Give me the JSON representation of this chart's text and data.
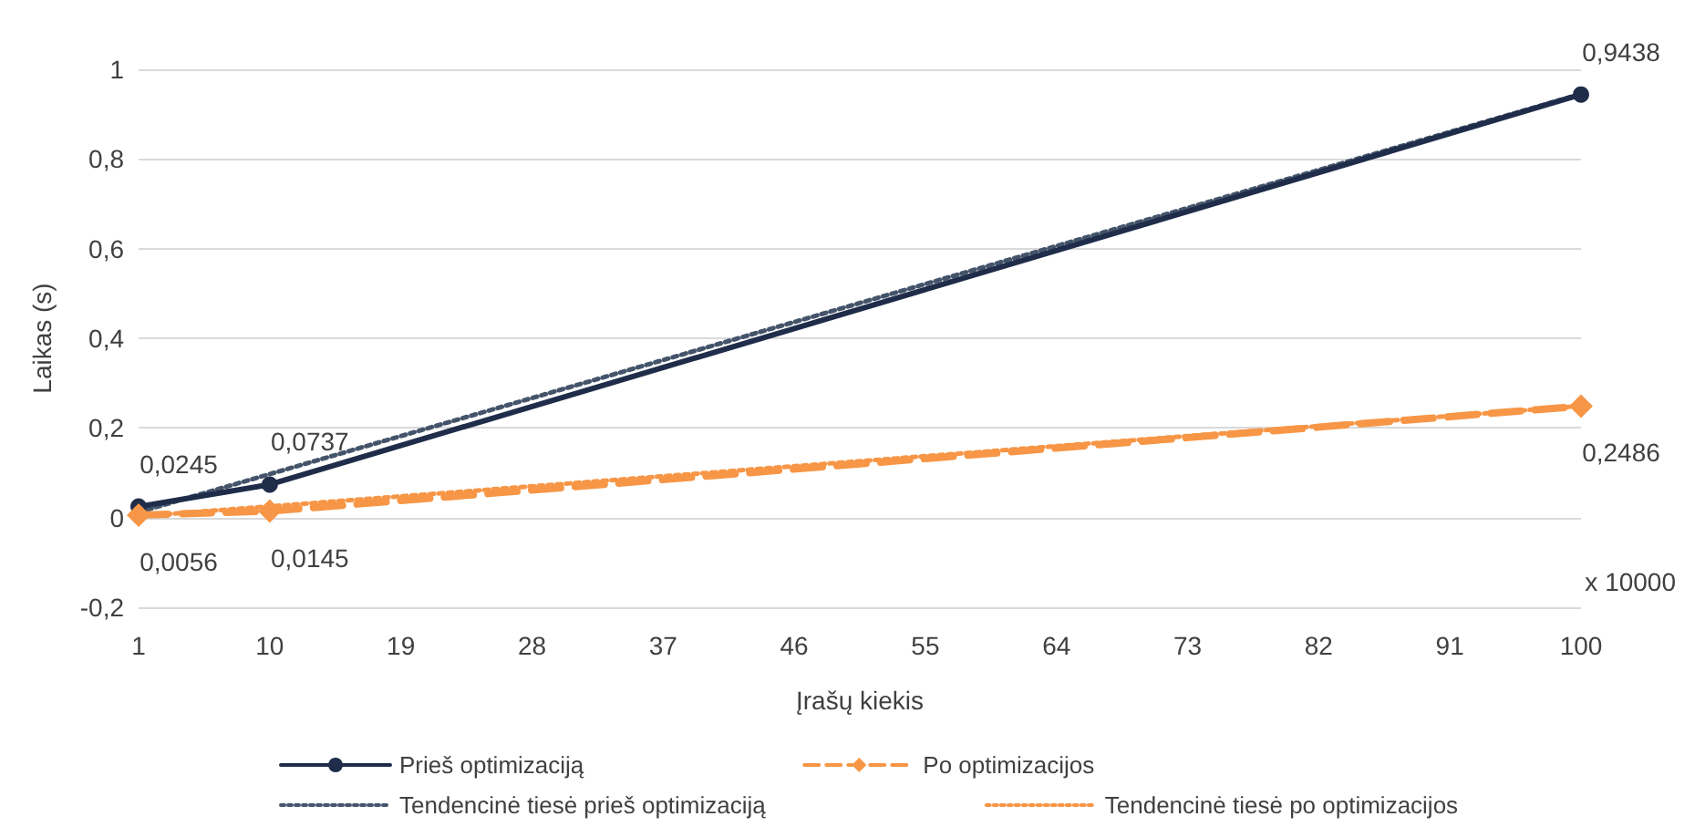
{
  "chart_data": {
    "type": "line",
    "xlabel": "Įrašų kiekis",
    "ylabel": "Laikas (s)",
    "x": [
      1,
      10,
      100
    ],
    "xlim": [
      1,
      100
    ],
    "xticks": [
      1,
      10,
      19,
      28,
      37,
      46,
      55,
      64,
      73,
      82,
      91,
      100
    ],
    "ylim": [
      -0.2,
      1
    ],
    "yticks": [
      {
        "value": -0.2,
        "label": "-0,2"
      },
      {
        "value": 0,
        "label": "0"
      },
      {
        "value": 0.2,
        "label": "0,2"
      },
      {
        "value": 0.4,
        "label": "0,4"
      },
      {
        "value": 0.6,
        "label": "0,6"
      },
      {
        "value": 0.8,
        "label": "0,8"
      },
      {
        "value": 1,
        "label": "1"
      }
    ],
    "series": [
      {
        "name": "Prieš optimizaciją",
        "color": "#1f2d4a",
        "values": [
          0.0245,
          0.0737,
          0.9438
        ],
        "value_labels": [
          "0,0245",
          "0,0737",
          "0,9438"
        ],
        "marker": "circle",
        "line_style": "solid"
      },
      {
        "name": "Po optimizacijos",
        "color": "#f79646",
        "values": [
          0.0056,
          0.0145,
          0.2486
        ],
        "value_labels": [
          "0,0056",
          "0,0145",
          "0,2486"
        ],
        "marker": "diamond",
        "line_style": "dashed"
      },
      {
        "name": "Tendencinė tiesė prieš optimizaciją",
        "color": "#44546a",
        "values": [
          0.012,
          0.097,
          0.945
        ],
        "marker": "none",
        "line_style": "dotted"
      },
      {
        "name": "Tendencinė tiesė po optimizacijos",
        "color": "#f79646",
        "values": [
          0.003,
          0.025,
          0.249
        ],
        "marker": "none",
        "line_style": "dotted"
      }
    ],
    "annotations": [
      "x 10000"
    ],
    "grid": "y",
    "legend": "bottom"
  }
}
